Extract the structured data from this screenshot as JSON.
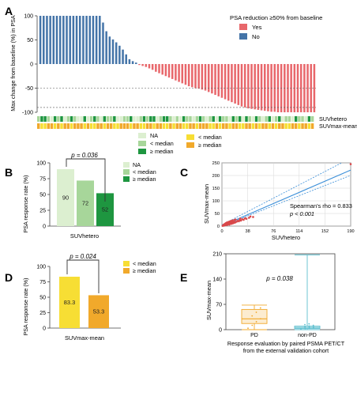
{
  "colors": {
    "waterfall_yes": "#E8676B",
    "waterfall_no": "#4474A8",
    "na": "#DCEFD0",
    "lt_median_hetero": "#A7D69A",
    "ge_median_hetero": "#1E9640",
    "lt_median_mean": "#F7DE34",
    "ge_median_mean": "#F1A92B",
    "scatter_point": "#D9484A",
    "fit_line": "#3B8FD9",
    "box_pd": "#F1A92B",
    "box_nonpd": "#5FBFCF"
  },
  "panels": {
    "a": {
      "label": "A",
      "legend_title": "PSA reduction ≥50% from baseline",
      "legend_items": [
        "Yes",
        "No"
      ],
      "strip_labels": [
        "SUVhetero",
        "SUVmax-mean"
      ],
      "strip_legend_items": [
        "NA",
        "< median",
        "≥ median",
        "< median",
        "≥ median"
      ]
    },
    "b": {
      "label": "B",
      "pvalue": "p = 0.036",
      "legend_items": [
        "NA",
        "< median",
        "≥ median"
      ]
    },
    "c": {
      "label": "C",
      "annotation_rho": "Spearman's rho = 0.833",
      "annotation_p": "p < 0.001"
    },
    "d": {
      "label": "D",
      "pvalue": "p = 0.024",
      "legend_items": [
        "< median",
        "≥ median"
      ]
    },
    "e": {
      "label": "E",
      "pvalue": "p = 0.038"
    }
  },
  "chart_data": [
    {
      "id": "A",
      "type": "bar",
      "ylabel": "Max change from baseline (%) in PSA",
      "ylim": [
        -100,
        100
      ],
      "yticks": [
        100,
        50,
        0,
        -50,
        -100
      ],
      "reference_lines": [
        -50,
        -90
      ],
      "series": [
        {
          "name": "Yes",
          "values": [
            -2,
            -4,
            -6,
            -9,
            -12,
            -16,
            -19,
            -22,
            -25,
            -28,
            -31,
            -34,
            -37,
            -40,
            -43,
            -46,
            -48,
            -50,
            -51,
            -53,
            -55,
            -58,
            -61,
            -64,
            -67,
            -70,
            -73,
            -76,
            -79,
            -82,
            -85,
            -88,
            -90,
            -92,
            -93,
            -94,
            -95,
            -96,
            -97,
            -98,
            -99,
            -99,
            -100,
            -100,
            -100,
            -100,
            -100,
            -100,
            -100,
            -100,
            -100,
            -100,
            -100,
            -100
          ]
        },
        {
          "name": "No",
          "values": [
            100,
            100,
            100,
            100,
            100,
            100,
            100,
            100,
            100,
            100,
            100,
            100,
            100,
            100,
            100,
            100,
            100,
            100,
            100,
            86,
            68,
            57,
            51,
            45,
            38,
            30,
            20,
            10,
            6,
            3
          ]
        }
      ],
      "strips": {
        "SUVhetero": [
          1,
          2,
          2,
          1,
          0,
          2,
          1,
          2,
          0,
          1,
          2,
          1,
          0,
          0,
          2,
          0,
          1,
          2,
          1,
          0,
          2,
          1,
          1,
          2,
          0,
          0,
          1,
          1,
          2,
          0,
          0,
          1,
          2,
          1,
          2,
          2,
          0,
          1,
          2,
          2,
          1,
          0,
          1,
          0,
          2,
          1,
          1,
          0,
          1,
          2,
          1,
          0,
          1,
          2,
          0,
          2,
          1,
          1,
          0,
          2,
          1,
          2,
          0,
          2,
          1,
          0,
          2,
          1,
          0,
          1,
          2,
          0,
          1,
          2,
          0,
          1,
          1,
          0,
          2,
          1,
          1,
          0,
          2,
          1
        ],
        "SUVmax-mean": [
          1,
          0,
          0,
          1,
          1,
          0,
          1,
          0,
          1,
          1,
          0,
          1,
          1,
          1,
          0,
          1,
          0,
          0,
          1,
          1,
          0,
          1,
          1,
          0,
          0,
          1,
          1,
          1,
          0,
          1,
          1,
          0,
          0,
          1,
          1,
          0,
          1,
          1,
          0,
          0,
          1,
          0,
          1,
          1,
          0,
          0,
          1,
          1,
          0,
          1,
          1,
          1,
          0,
          0,
          1,
          0,
          1,
          1,
          0,
          1,
          1,
          0,
          0,
          1,
          1,
          0,
          1,
          0,
          1,
          1,
          0,
          1,
          0,
          1,
          1,
          0,
          0,
          1,
          1,
          0,
          1,
          1,
          0,
          1
        ]
      }
    },
    {
      "id": "B",
      "type": "bar",
      "xlabel": "SUVhetero",
      "ylabel": "PSA response rate (%)",
      "ylim": [
        0,
        100
      ],
      "yticks": [
        0,
        25,
        50,
        75,
        100
      ],
      "categories": [
        "NA",
        "< median",
        "≥ median"
      ],
      "values": [
        90,
        72,
        52
      ],
      "labels": [
        "90",
        "72",
        "52"
      ]
    },
    {
      "id": "C",
      "type": "scatter",
      "xlabel": "SUVhetero",
      "ylabel": "SUVmax-mean",
      "xlim": [
        0,
        190
      ],
      "ylim": [
        0,
        250
      ],
      "xticks": [
        0,
        38,
        76,
        114,
        152,
        190
      ],
      "yticks": [
        0,
        50,
        100,
        150,
        200,
        250
      ],
      "points": [
        [
          1,
          1
        ],
        [
          2,
          2
        ],
        [
          2,
          4
        ],
        [
          3,
          2
        ],
        [
          3,
          6
        ],
        [
          4,
          3
        ],
        [
          4,
          8
        ],
        [
          5,
          5
        ],
        [
          5,
          10
        ],
        [
          6,
          4
        ],
        [
          6,
          12
        ],
        [
          7,
          7
        ],
        [
          7,
          14
        ],
        [
          8,
          5
        ],
        [
          8,
          11
        ],
        [
          9,
          9
        ],
        [
          9,
          16
        ],
        [
          10,
          8
        ],
        [
          10,
          13
        ],
        [
          11,
          6
        ],
        [
          11,
          18
        ],
        [
          12,
          10
        ],
        [
          12,
          15
        ],
        [
          13,
          12
        ],
        [
          13,
          20
        ],
        [
          14,
          9
        ],
        [
          14,
          17
        ],
        [
          15,
          14
        ],
        [
          15,
          22
        ],
        [
          16,
          11
        ],
        [
          16,
          19
        ],
        [
          17,
          15
        ],
        [
          18,
          13
        ],
        [
          18,
          24
        ],
        [
          19,
          17
        ],
        [
          20,
          15
        ],
        [
          20,
          26
        ],
        [
          22,
          18
        ],
        [
          23,
          21
        ],
        [
          25,
          19
        ],
        [
          26,
          24
        ],
        [
          27,
          30
        ],
        [
          28,
          22
        ],
        [
          30,
          27
        ],
        [
          32,
          25
        ],
        [
          34,
          31
        ],
        [
          36,
          29
        ],
        [
          40,
          33
        ],
        [
          42,
          38
        ],
        [
          46,
          36
        ],
        [
          190,
          245
        ]
      ],
      "fit": {
        "slope": 1.16,
        "intercept": 1.0
      }
    },
    {
      "id": "D",
      "type": "bar",
      "xlabel": "SUVmax-mean",
      "ylabel": "PSA response rate (%)",
      "ylim": [
        0,
        100
      ],
      "yticks": [
        0,
        25,
        50,
        75,
        100
      ],
      "categories": [
        "< median",
        "≥ median"
      ],
      "values": [
        83.3,
        53.3
      ],
      "labels": [
        "83.3",
        "53.3"
      ]
    },
    {
      "id": "E",
      "type": "box",
      "xlabel": "Response evaluation by paired PSMA PET/CT from the external validation cohort",
      "xlabel_lines": [
        "Response evaluation by paired PSMA PET/CT",
        "from the external validation cohort"
      ],
      "ylabel": "SUVmax-mean",
      "ylim": [
        0,
        210
      ],
      "yticks": [
        0,
        70,
        140,
        210
      ],
      "categories": [
        "PD",
        "non-PD"
      ],
      "boxes": [
        {
          "name": "PD",
          "min": 0,
          "q1": 17,
          "median": 30,
          "q3": 56,
          "max": 68,
          "points": [
            4,
            12,
            22,
            30,
            38,
            48,
            60
          ]
        },
        {
          "name": "non-PD",
          "min": 0,
          "q1": 3,
          "median": 6,
          "q3": 10,
          "max": 207,
          "points": [
            2,
            3,
            4,
            5,
            6,
            7,
            8,
            9,
            10,
            12,
            14,
            16
          ]
        }
      ]
    }
  ]
}
